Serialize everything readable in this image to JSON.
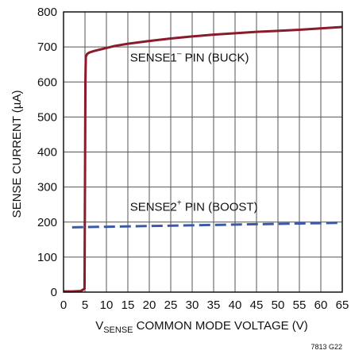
{
  "chart_data": {
    "type": "line",
    "xlabel": {
      "main": "V",
      "sub": "SENSE",
      "rest": " COMMON MODE VOLTAGE (V)"
    },
    "ylabel": "SENSE CURRENT (µA)",
    "xlim": [
      0,
      65
    ],
    "ylim": [
      0,
      800
    ],
    "x_ticks": [
      0,
      5,
      10,
      15,
      20,
      25,
      30,
      35,
      40,
      45,
      50,
      55,
      60,
      65
    ],
    "y_ticks": [
      0,
      100,
      200,
      300,
      400,
      500,
      600,
      700,
      800
    ],
    "grid": true,
    "series": [
      {
        "name": "SENSE1⁻ PIN (BUCK)",
        "color": "#8b1a2b",
        "style": "solid",
        "x": [
          0,
          2,
          4,
          4.9,
          5.0,
          5.1,
          5.2,
          5.5,
          6,
          7,
          8,
          10,
          12,
          15,
          20,
          25,
          30,
          35,
          40,
          45,
          50,
          55,
          60,
          65
        ],
        "y": [
          2,
          2,
          3,
          10,
          300,
          600,
          672,
          680,
          684,
          688,
          691,
          697,
          703,
          709,
          717,
          724,
          730,
          735,
          739,
          743,
          746,
          749,
          753,
          757
        ]
      },
      {
        "name": "SENSE2⁺ PIN (BOOST)",
        "color": "#3a5aa8",
        "style": "dashed",
        "x": [
          2,
          65
        ],
        "y": [
          185,
          198
        ]
      }
    ],
    "annotations": [
      {
        "label_main": "SENSE1",
        "label_sup": "–",
        "label_rest": " PIN (BUCK)",
        "x": 15.5,
        "y": 658
      },
      {
        "label_main": "SENSE2",
        "label_sup": "+",
        "label_rest": " PIN (BOOST)",
        "x": 15.5,
        "y": 232
      }
    ],
    "figure_id": "7813 G22"
  }
}
